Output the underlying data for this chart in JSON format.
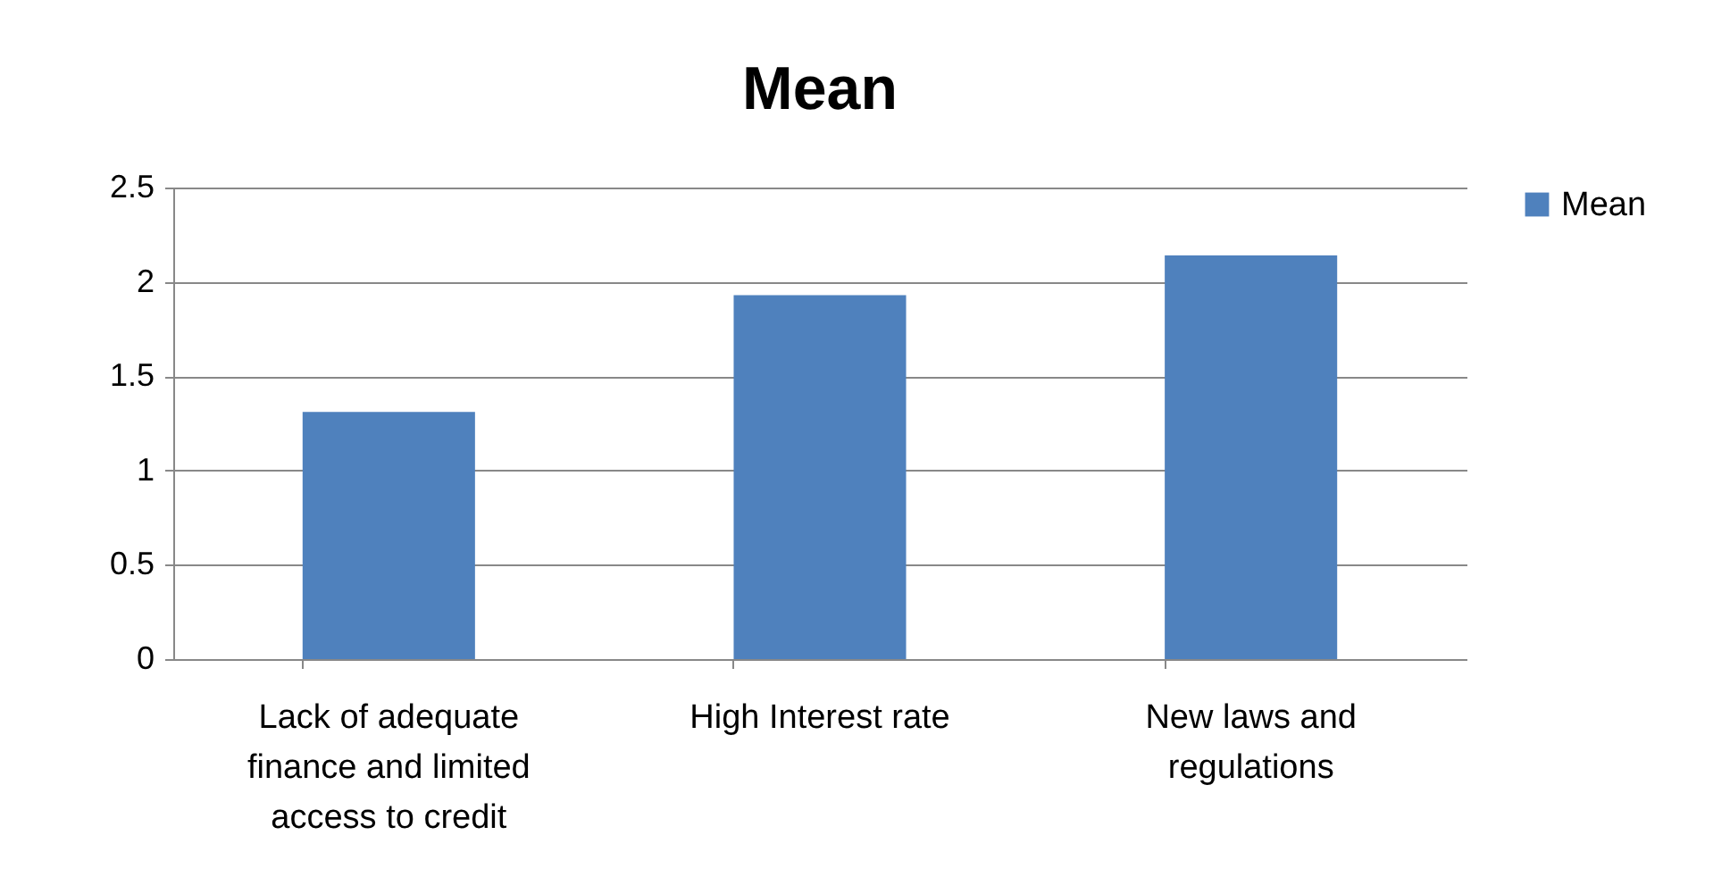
{
  "chart_data": {
    "type": "bar",
    "title": "Mean",
    "categories": [
      "Lack of adequate finance and limited access to credit",
      "High Interest rate",
      "New laws and regulations"
    ],
    "series": [
      {
        "name": "Mean",
        "color": "#4f81bd",
        "values": [
          1.31,
          1.93,
          2.14
        ]
      }
    ],
    "ylim": [
      0,
      2.5
    ],
    "yticks": [
      0,
      0.5,
      1,
      1.5,
      2,
      2.5
    ],
    "grid": "y",
    "legend": "right"
  }
}
